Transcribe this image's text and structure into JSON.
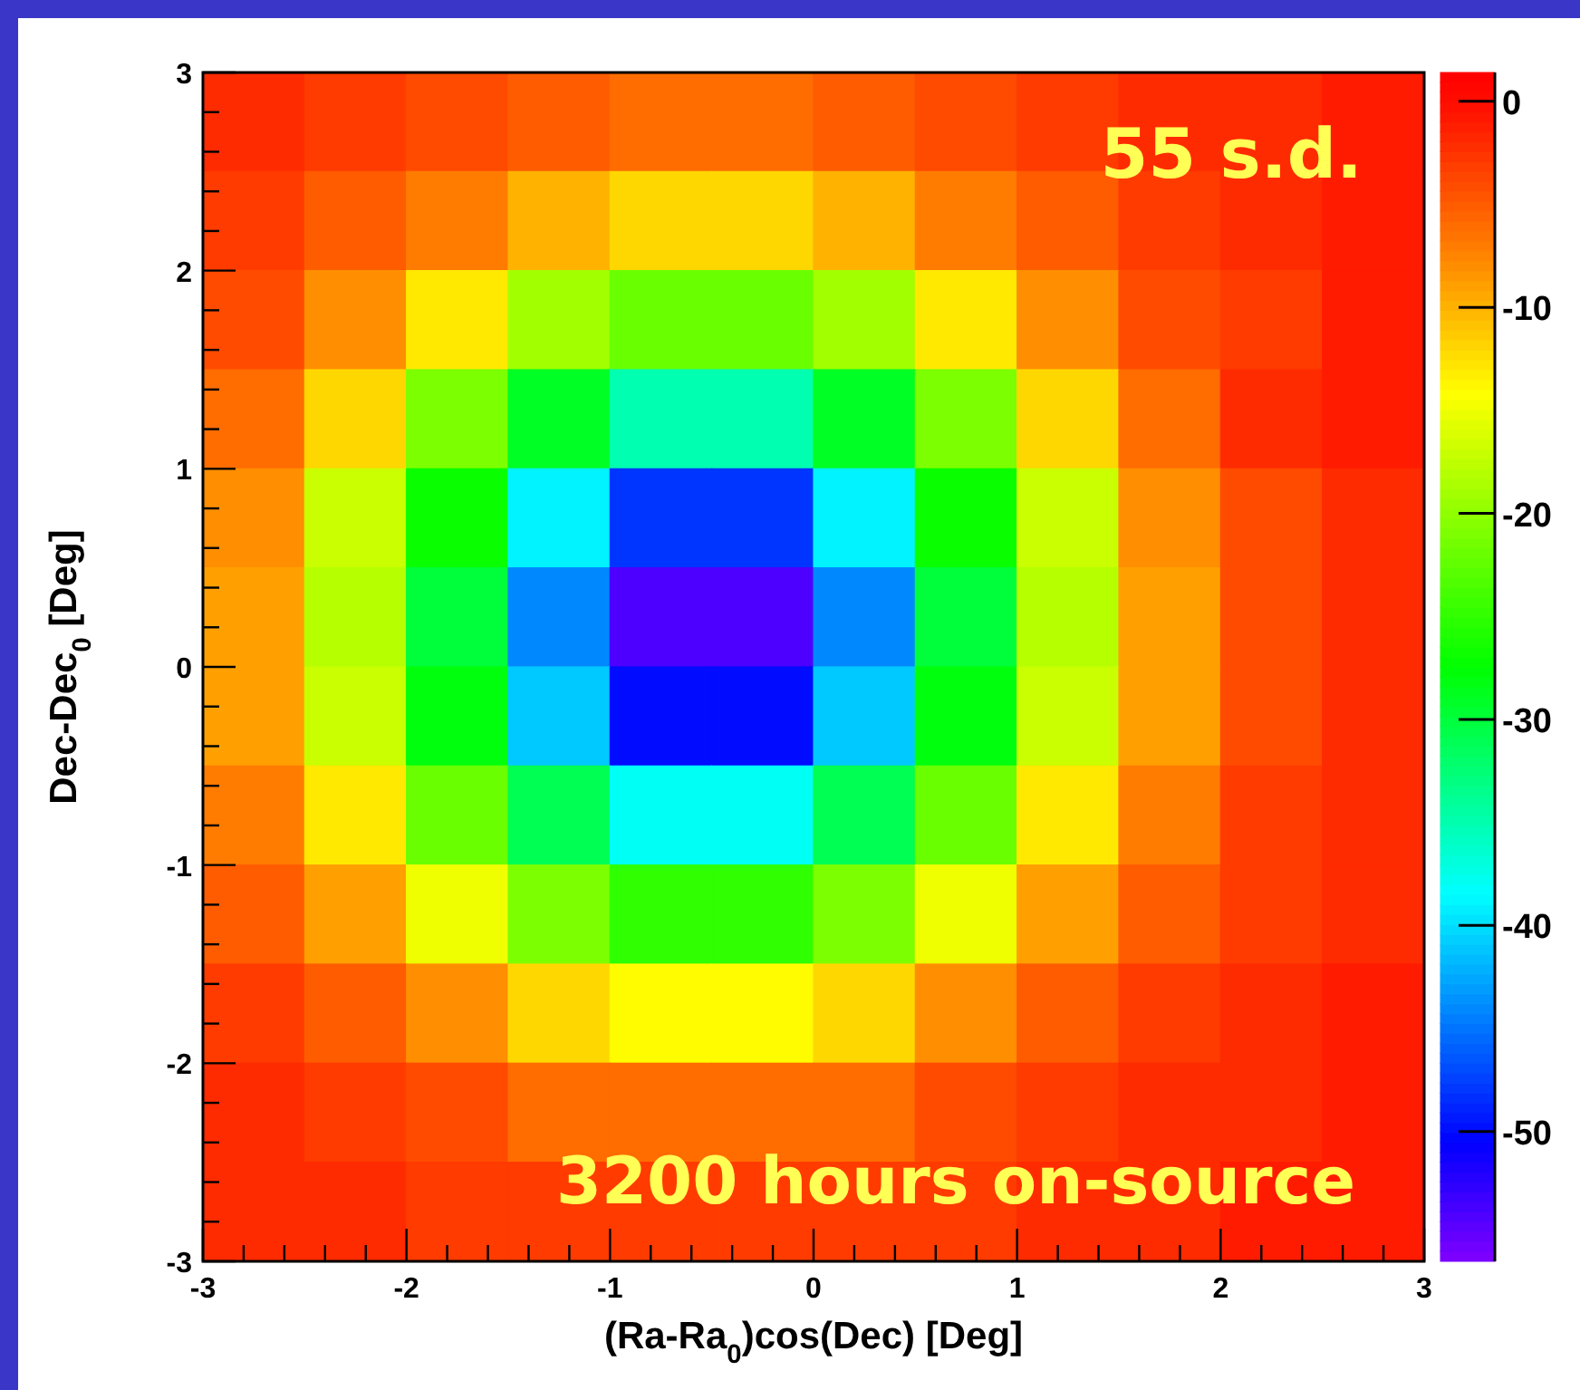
{
  "chart_data": {
    "type": "heatmap",
    "xlabel": "(Ra-Ra$_{0}$)cos(Dec) [Deg]",
    "ylabel": "Dec-Dec$_{0}$ [Deg]",
    "annotations": [
      "55 s.d.",
      "3200 hours on-source"
    ],
    "x": [
      -2.75,
      -2.25,
      -1.75,
      -1.25,
      -0.75,
      -0.25,
      0.25,
      0.75,
      1.25,
      1.75,
      2.25,
      2.75
    ],
    "y": [
      2.75,
      2.25,
      1.75,
      1.25,
      0.75,
      0.25,
      -0.25,
      -0.75,
      -1.25,
      -1.75,
      -2.25,
      -2.75
    ],
    "cells": [
      [
        -2,
        -3,
        -4,
        -5,
        -6,
        -6,
        -5,
        -4,
        -3,
        -2,
        -2,
        -1
      ],
      [
        -3,
        -5,
        -7,
        -10,
        -12,
        -12,
        -10,
        -7,
        -5,
        -3,
        -2,
        -1
      ],
      [
        -4,
        -8,
        -13,
        -19,
        -22,
        -22,
        -19,
        -13,
        -8,
        -4,
        -3,
        -1
      ],
      [
        -6,
        -12,
        -21,
        -29,
        -35,
        -35,
        -29,
        -21,
        -12,
        -6,
        -2,
        -1
      ],
      [
        -8,
        -17,
        -27,
        -39,
        -48,
        -48,
        -39,
        -27,
        -17,
        -8,
        -4,
        -2
      ],
      [
        -9,
        -18,
        -30,
        -44,
        -54,
        -54,
        -44,
        -30,
        -18,
        -9,
        -4,
        -2
      ],
      [
        -9,
        -17,
        -28,
        -41,
        -50,
        -50,
        -41,
        -28,
        -17,
        -9,
        -4,
        -2
      ],
      [
        -7,
        -13,
        -22,
        -31,
        -38,
        -38,
        -31,
        -22,
        -13,
        -7,
        -3,
        -2
      ],
      [
        -5,
        -9,
        -15,
        -21,
        -25,
        -25,
        -21,
        -15,
        -9,
        -5,
        -3,
        -2
      ],
      [
        -3,
        -5,
        -8,
        -12,
        -14,
        -14,
        -12,
        -8,
        -5,
        -3,
        -2,
        -1
      ],
      [
        -2,
        -3,
        -4,
        -6,
        -6,
        -6,
        -6,
        -4,
        -3,
        -2,
        -2,
        -1
      ],
      [
        -2,
        -2,
        -3,
        -3,
        -3,
        -3,
        -3,
        -3,
        -2,
        -2,
        -1,
        -1
      ]
    ],
    "xlim": [
      -3,
      3
    ],
    "ylim": [
      -3,
      3
    ],
    "xticks": [
      -3,
      {
        "value": -2.8,
        "label": null
      },
      {
        "value": -2.6,
        "label": null
      },
      {
        "value": -2.4,
        "label": null
      },
      {
        "value": -2.2,
        "label": null
      },
      -2,
      {
        "value": -1.8,
        "label": null
      },
      {
        "value": -1.6,
        "label": null
      },
      {
        "value": -1.4,
        "label": null
      },
      {
        "value": -1.2,
        "label": null
      },
      -1,
      {
        "value": -0.8,
        "label": null
      },
      {
        "value": -0.6,
        "label": null
      },
      {
        "value": -0.4,
        "label": null
      },
      {
        "value": -0.2,
        "label": null
      },
      0,
      {
        "value": 0.2,
        "label": null
      },
      {
        "value": 0.4,
        "label": null
      },
      {
        "value": 0.6,
        "label": null
      },
      {
        "value": 0.8,
        "label": null
      },
      1,
      {
        "value": 1.2,
        "label": null
      },
      {
        "value": 1.4,
        "label": null
      },
      {
        "value": 1.6,
        "label": null
      },
      {
        "value": 1.8,
        "label": null
      },
      2,
      {
        "value": 2.2,
        "label": null
      },
      {
        "value": 2.4,
        "label": null
      },
      {
        "value": 2.6,
        "label": null
      },
      {
        "value": 2.8,
        "label": null
      },
      3
    ],
    "yticks": [
      -3,
      {
        "value": -2.8,
        "label": null
      },
      {
        "value": -2.6,
        "label": null
      },
      {
        "value": -2.4,
        "label": null
      },
      {
        "value": -2.2,
        "label": null
      },
      -2,
      {
        "value": -1.8,
        "label": null
      },
      {
        "value": -1.6,
        "label": null
      },
      {
        "value": -1.4,
        "label": null
      },
      {
        "value": -1.2,
        "label": null
      },
      -1,
      {
        "value": -0.8,
        "label": null
      },
      {
        "value": -0.6,
        "label": null
      },
      {
        "value": -0.4,
        "label": null
      },
      {
        "value": -0.2,
        "label": null
      },
      0,
      {
        "value": 0.2,
        "label": null
      },
      {
        "value": 0.4,
        "label": null
      },
      {
        "value": 0.6,
        "label": null
      },
      {
        "value": 0.8,
        "label": null
      },
      1,
      {
        "value": 1.2,
        "label": null
      },
      {
        "value": 1.4,
        "label": null
      },
      {
        "value": 1.6,
        "label": null
      },
      {
        "value": 1.8,
        "label": null
      },
      2,
      {
        "value": 2.2,
        "label": null
      },
      {
        "value": 2.4,
        "label": null
      },
      {
        "value": 2.6,
        "label": null
      },
      {
        "value": 2.8,
        "label": null
      },
      3
    ],
    "clim": [
      -56.3,
      1.4
    ],
    "cticks": [
      -50,
      -40,
      -30,
      -20,
      -10,
      0
    ]
  }
}
